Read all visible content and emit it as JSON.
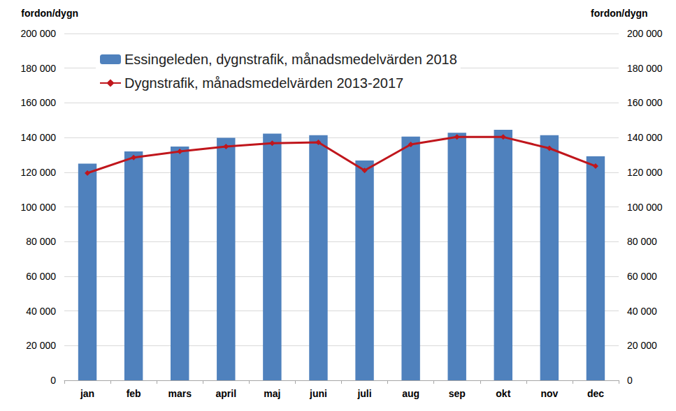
{
  "chart_data": {
    "type": "bar",
    "categories": [
      "jan",
      "feb",
      "mars",
      "april",
      "maj",
      "juni",
      "juli",
      "aug",
      "sep",
      "okt",
      "nov",
      "dec"
    ],
    "series": [
      {
        "name": "Essingeleden, dygnstrafik, månadsmedelvärden 2018",
        "type": "bar",
        "color": "#4f81bd",
        "values": [
          125000,
          132000,
          134800,
          139800,
          142300,
          141300,
          126800,
          140500,
          142800,
          144500,
          141300,
          129200
        ]
      },
      {
        "name": "Dygnstrafik, månadsmedelvärden 2013-2017",
        "type": "line",
        "color": "#c0161c",
        "marker": "diamond",
        "values": [
          119500,
          128500,
          132000,
          134800,
          136700,
          137200,
          121000,
          136000,
          140300,
          140300,
          133800,
          123500
        ]
      }
    ],
    "ylabel": "fordon/dygn",
    "y2label": "fordon/dygn",
    "ylim": [
      0,
      200000
    ],
    "yticks": [
      0,
      {
        "value": 20000,
        "label": "20 000"
      },
      {
        "value": 40000,
        "label": "40 000"
      },
      {
        "value": 60000,
        "label": "60 000"
      },
      {
        "value": 80000,
        "label": "80 000"
      },
      {
        "value": 100000,
        "label": "100 000"
      },
      {
        "value": 120000,
        "label": "120 000"
      },
      {
        "value": 140000,
        "label": "140 000"
      },
      {
        "value": 160000,
        "label": "160 000"
      },
      {
        "value": 180000,
        "label": "180 000"
      },
      {
        "value": 200000,
        "label": "200 000"
      }
    ],
    "y2lim": [
      0,
      200000
    ],
    "y2ticks": [
      0,
      {
        "value": 20000,
        "label": "20 000"
      },
      {
        "value": 40000,
        "label": "40 000"
      },
      {
        "value": 60000,
        "label": "60 000"
      },
      {
        "value": 80000,
        "label": "80 000"
      },
      {
        "value": 100000,
        "label": "100 000"
      },
      {
        "value": 120000,
        "label": "120 000"
      },
      {
        "value": 140000,
        "label": "140 000"
      },
      {
        "value": 160000,
        "label": "160 000"
      },
      {
        "value": 180000,
        "label": "180 000"
      },
      {
        "value": 200000,
        "label": "200 000"
      }
    ],
    "grid": true,
    "legend": "upper left"
  }
}
